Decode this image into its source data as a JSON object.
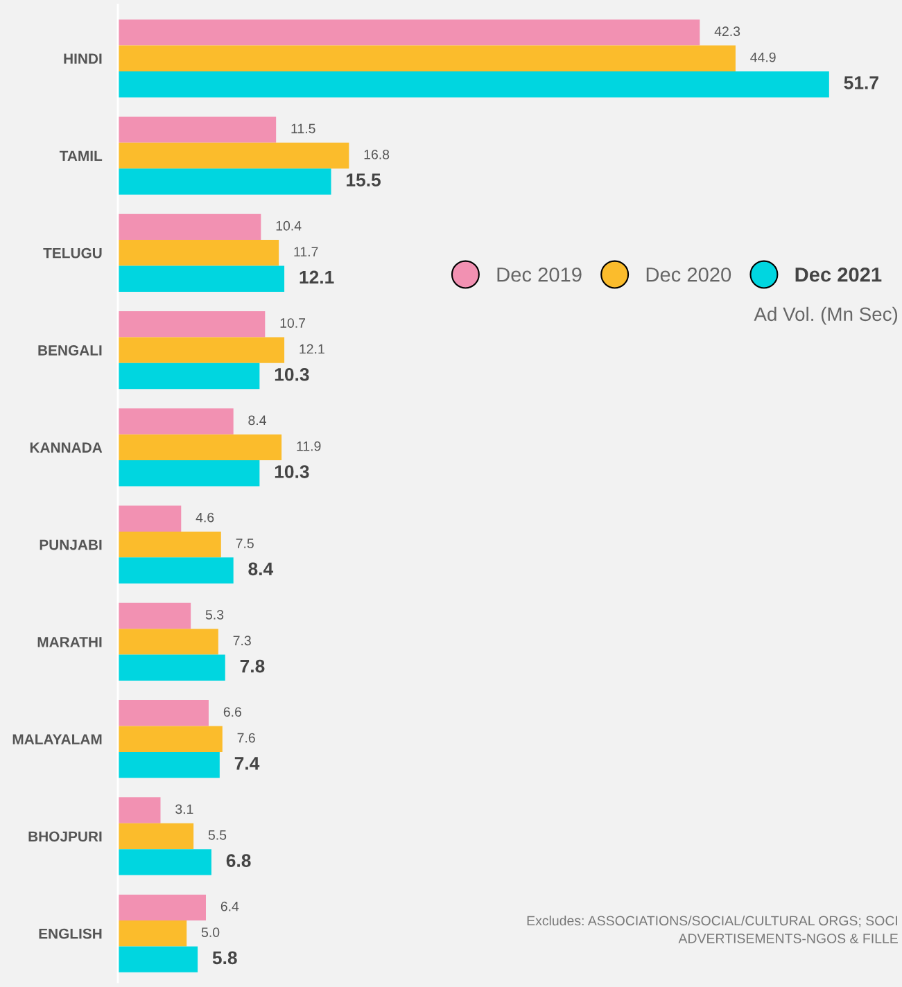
{
  "chart_data": {
    "type": "bar",
    "orientation": "horizontal",
    "categories": [
      "HINDI",
      "TAMIL",
      "TELUGU",
      "BENGALI",
      "KANNADA",
      "PUNJABI",
      "MARATHI",
      "MALAYALAM",
      "BHOJPURI",
      "ENGLISH"
    ],
    "series": [
      {
        "name": "Dec 2019",
        "color": "#f291b2",
        "values": [
          42.3,
          11.5,
          10.4,
          10.7,
          8.4,
          4.6,
          5.3,
          6.6,
          3.1,
          6.4
        ]
      },
      {
        "name": "Dec 2020",
        "color": "#fbbc2c",
        "values": [
          44.9,
          16.8,
          11.7,
          12.1,
          11.9,
          7.5,
          7.3,
          7.6,
          5.5,
          5.0
        ],
        "value_labels": [
          "44.9",
          "16.8",
          "11.7",
          "12.1",
          "11.9",
          "7.5",
          "7.3",
          "7.6",
          "5.5",
          "5.0"
        ]
      },
      {
        "name": "Dec 2021",
        "color": "#00d6e0",
        "values": [
          51.7,
          15.5,
          12.1,
          10.3,
          10.3,
          8.4,
          7.8,
          7.4,
          6.8,
          5.8
        ]
      }
    ],
    "xlim": [
      0,
      57
    ],
    "data_labels": true,
    "legend": "right",
    "marker": "circle",
    "grid": false,
    "annotations": [
      "Ad Vol. (Mn Sec)",
      "Excludes: ASSOCIATIONS/SOCIAL/CULTURAL ORGS; SOCI",
      "ADVERTISEMENTS-NGOS & FILLE"
    ]
  }
}
